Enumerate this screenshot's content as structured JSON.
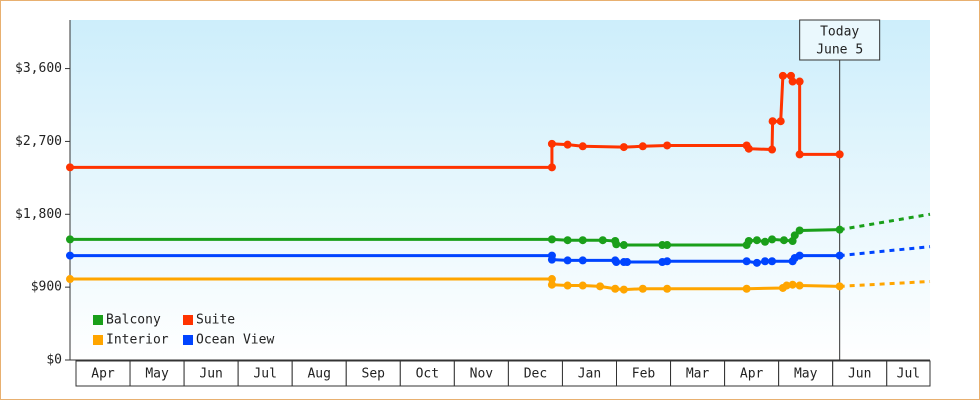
{
  "chart_data": {
    "type": "line",
    "categories": [
      "Apr",
      "May",
      "Jun",
      "Jul",
      "Aug",
      "Sep",
      "Oct",
      "Nov",
      "Dec",
      "Jan",
      "Feb",
      "Mar",
      "Apr",
      "May",
      "Jun",
      "Jul"
    ],
    "xlim": [
      -0.1,
      15.8
    ],
    "ylim": [
      0,
      4200
    ],
    "yticks": [
      {
        "value": 0,
        "label": "$0"
      },
      {
        "value": 900,
        "label": "$900"
      },
      {
        "value": 1800,
        "label": "$1,800"
      },
      {
        "value": 2700,
        "label": "$2,700"
      },
      {
        "value": 3600,
        "label": "$3,600"
      }
    ],
    "annotation": {
      "x": 14.13,
      "lines": [
        "Today",
        "June 5"
      ]
    },
    "series": [
      {
        "name": "Balcony",
        "color": "#1a9f1a",
        "x": [
          -0.1,
          8.81,
          9.1,
          9.38,
          9.75,
          9.98,
          10.0,
          10.14,
          10.85,
          10.94,
          12.41,
          12.45,
          12.6,
          12.75,
          12.88,
          13.1,
          13.26,
          13.3,
          13.39,
          14.13
        ],
        "values": [
          1490,
          1490,
          1480,
          1480,
          1480,
          1470,
          1430,
          1420,
          1420,
          1420,
          1420,
          1470,
          1480,
          1460,
          1490,
          1480,
          1470,
          1540,
          1600,
          1610
        ],
        "projection": {
          "x": [
            14.13,
            15.8
          ],
          "values": [
            1610,
            1800
          ]
        }
      },
      {
        "name": "Suite",
        "color": "#ff3300",
        "x": [
          -0.1,
          8.81,
          8.81,
          9.1,
          9.38,
          10.14,
          10.49,
          10.94,
          12.41,
          12.45,
          12.88,
          12.89,
          13.04,
          13.08,
          13.23,
          13.26,
          13.39,
          13.39,
          14.13
        ],
        "values": [
          2380,
          2380,
          2670,
          2660,
          2640,
          2630,
          2640,
          2650,
          2650,
          2610,
          2600,
          2950,
          2950,
          3510,
          3510,
          3440,
          3440,
          2540,
          2540
        ]
      },
      {
        "name": "Interior",
        "color": "#ffa500",
        "x": [
          -0.1,
          8.81,
          8.81,
          9.1,
          9.38,
          9.7,
          9.98,
          10.14,
          10.49,
          10.94,
          12.41,
          13.08,
          13.15,
          13.26,
          13.39,
          14.13
        ],
        "values": [
          1000,
          1000,
          930,
          920,
          920,
          910,
          880,
          870,
          880,
          880,
          880,
          890,
          920,
          930,
          920,
          910
        ],
        "projection": {
          "x": [
            14.13,
            15.8
          ],
          "values": [
            910,
            970
          ]
        }
      },
      {
        "name": "Ocean View",
        "color": "#0044ff",
        "x": [
          -0.1,
          8.81,
          8.81,
          9.1,
          9.38,
          9.98,
          10.0,
          10.14,
          10.2,
          10.85,
          10.94,
          12.41,
          12.6,
          12.75,
          12.88,
          13.26,
          13.3,
          13.39,
          14.13
        ],
        "values": [
          1290,
          1290,
          1240,
          1230,
          1230,
          1230,
          1210,
          1210,
          1210,
          1210,
          1220,
          1220,
          1200,
          1220,
          1220,
          1220,
          1260,
          1290,
          1290
        ],
        "projection": {
          "x": [
            14.13,
            15.8
          ],
          "values": [
            1290,
            1400
          ]
        }
      }
    ]
  }
}
